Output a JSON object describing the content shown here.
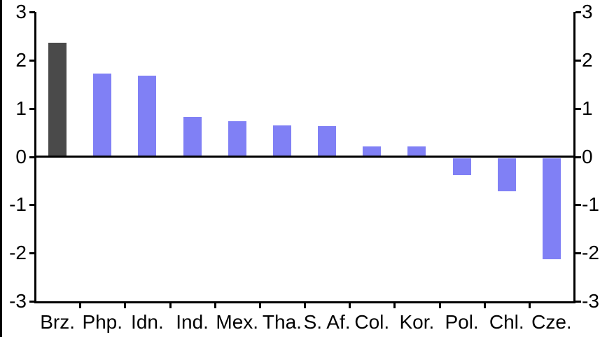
{
  "chart_data": {
    "type": "bar",
    "categories": [
      "Brz.",
      "Php.",
      "Idn.",
      "Ind.",
      "Mex.",
      "Tha.",
      "S. Af.",
      "Col.",
      "Kor.",
      "Pol.",
      "Chl.",
      "Cze."
    ],
    "values": [
      2.35,
      1.7,
      1.67,
      0.81,
      0.72,
      0.63,
      0.62,
      0.2,
      0.19,
      -0.4,
      -0.74,
      -2.15
    ],
    "highlight_index": 0,
    "highlight_color": "#4a4a4a",
    "bar_color": "#8080f5",
    "axis_color": "#000000",
    "text_color": "#000000",
    "background_color": "#ffffff",
    "y_ticks_left": [
      "3",
      "2",
      "1",
      "0",
      "-1",
      "-2",
      "-3"
    ],
    "y_ticks_right": [
      "3",
      "2",
      "1",
      "0",
      "-1",
      "-2",
      "-3"
    ],
    "ylim": [
      -3,
      3
    ],
    "grid": false,
    "legend": null,
    "title": "",
    "xlabel": "",
    "ylabel": ""
  }
}
